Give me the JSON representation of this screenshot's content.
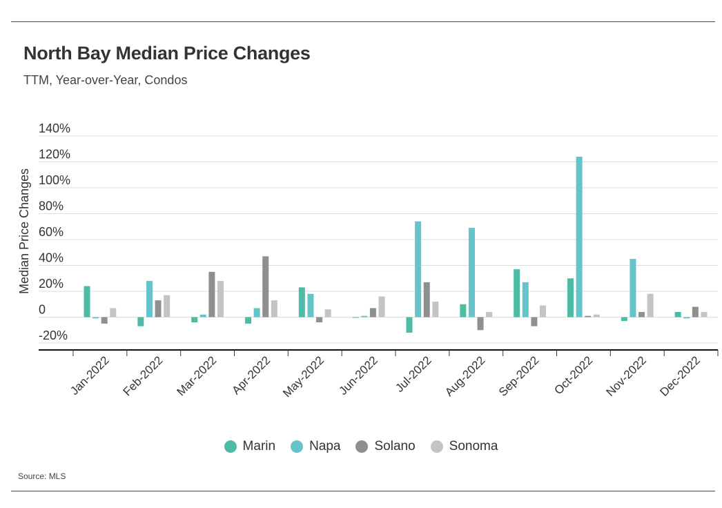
{
  "header": {
    "title": "North Bay Median Price Changes",
    "subtitle": "TTM, Year-over-Year, Condos"
  },
  "footer": {
    "source": "Source: MLS"
  },
  "chart_data": {
    "type": "bar",
    "title": "North Bay Median Price Changes",
    "subtitle": "TTM, Year-over-Year, Condos",
    "xlabel": "",
    "ylabel": "Median Price Changes",
    "ylim": [
      -20,
      140
    ],
    "yticks": [
      -20,
      0,
      20,
      40,
      60,
      80,
      100,
      120,
      140
    ],
    "ytick_labels": [
      "-20%",
      "0",
      "20%",
      "40%",
      "60%",
      "80%",
      "100%",
      "120%",
      "140%"
    ],
    "grid": true,
    "legend_position": "bottom",
    "categories": [
      "Jan-2022",
      "Feb-2022",
      "Mar-2022",
      "Apr-2022",
      "May-2022",
      "Jun-2022",
      "Jul-2022",
      "Aug-2022",
      "Sep-2022",
      "Oct-2022",
      "Nov-2022",
      "Dec-2022"
    ],
    "series": [
      {
        "name": "Marin",
        "color": "#4dbba6",
        "values": [
          24,
          -7,
          -4,
          -5,
          23,
          0,
          -12,
          10,
          37,
          30,
          -3,
          4
        ]
      },
      {
        "name": "Napa",
        "color": "#65c3cc",
        "values": [
          -1,
          28,
          2,
          7,
          18,
          1,
          74,
          69,
          27,
          124,
          45,
          -1
        ]
      },
      {
        "name": "Solano",
        "color": "#8f8f8f",
        "values": [
          -5,
          13,
          35,
          47,
          -4,
          7,
          27,
          -10,
          -7,
          1,
          4,
          8
        ]
      },
      {
        "name": "Sonoma",
        "color": "#c4c4c4",
        "values": [
          7,
          17,
          28,
          13,
          6,
          16,
          12,
          4,
          9,
          2,
          18,
          4
        ]
      }
    ]
  }
}
